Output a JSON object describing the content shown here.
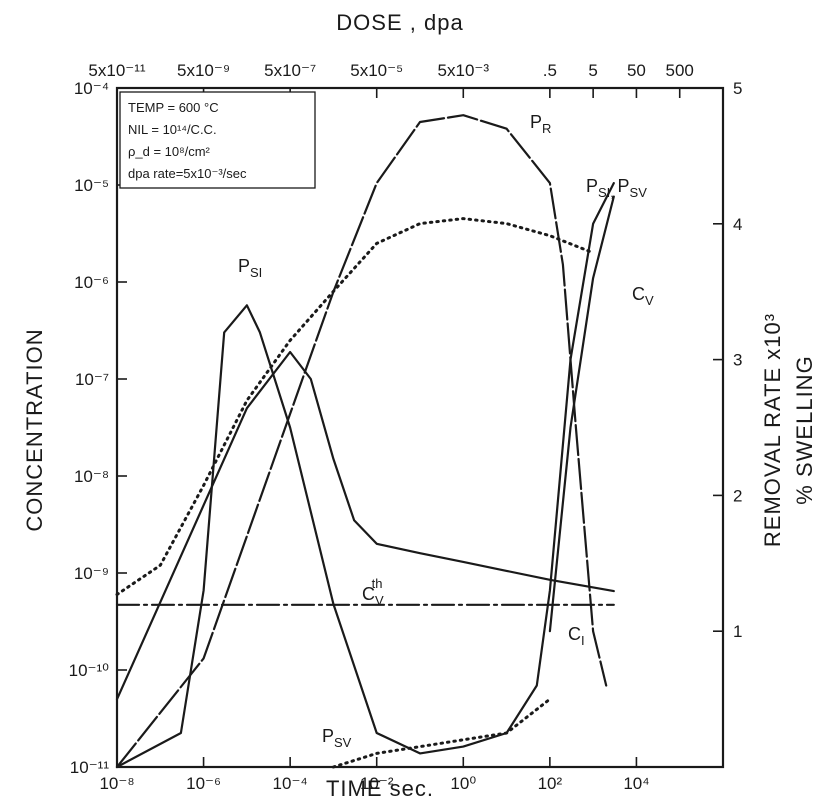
{
  "chart_data": {
    "type": "line",
    "x_axis": {
      "title": "TIME sec.",
      "scale": "log",
      "range": [
        1e-08,
        1000000.0
      ],
      "ticks": [
        1e-08,
        1e-06,
        0.0001,
        0.01,
        1.0,
        100.0,
        10000.0
      ],
      "tick_labels": [
        "10⁻⁸",
        "10⁻⁶",
        "10⁻⁴",
        "10⁻²",
        "10⁰",
        "10²",
        "10⁴"
      ]
    },
    "top_axis": {
      "title": "DOSE , dpa",
      "ticks": [
        1e-08,
        1e-06,
        0.0001,
        0.01,
        1.0,
        100.0,
        1000.0,
        10000.0,
        100000.0
      ],
      "tick_labels": [
        "5x10⁻¹¹",
        "5x10⁻⁹",
        "5x10⁻⁷",
        "5x10⁻⁵",
        "5x10⁻³",
        ".5",
        "5",
        "50",
        "500"
      ]
    },
    "y_axis": {
      "title": "CONCENTRATION",
      "scale": "log",
      "range": [
        1e-11,
        0.0001
      ],
      "ticks": [
        1e-11,
        1e-10,
        1e-09,
        1e-08,
        1e-07,
        1e-06,
        1e-05,
        0.0001
      ],
      "tick_labels": [
        "10⁻¹¹",
        "10⁻¹⁰",
        "10⁻⁹",
        "10⁻⁸",
        "10⁻⁷",
        "10⁻⁶",
        "10⁻⁵",
        "10⁻⁴"
      ]
    },
    "y2_axis": {
      "title": "REMOVAL RATE x10³",
      "title2": "% SWELLING",
      "range": [
        0,
        5
      ],
      "ticks": [
        1,
        2,
        3,
        4,
        5
      ],
      "tick_labels": [
        "1",
        "2",
        "3",
        "4",
        "5"
      ]
    },
    "legend_box": {
      "lines": [
        "TEMP = 600 °C",
        "NIL = 10¹⁴/C.C.",
        "ρ_d = 10⁸/cm²",
        "dpa rate=5x10⁻³/sec"
      ]
    },
    "series": [
      {
        "name": "C_V",
        "style": "dotted",
        "axis": "y",
        "label": "C",
        "label_sub": "V",
        "points": [
          [
            1e-08,
            6e-10
          ],
          [
            1e-07,
            1.2e-09
          ],
          [
            1e-06,
            8e-09
          ],
          [
            1e-05,
            6e-08
          ],
          [
            0.0001,
            2.5e-07
          ],
          [
            0.001,
            8e-07
          ],
          [
            0.01,
            2.5e-06
          ],
          [
            0.1,
            4e-06
          ],
          [
            1,
            4.5e-06
          ],
          [
            10,
            4e-06
          ],
          [
            100,
            3e-06
          ],
          [
            1000,
            2e-06
          ]
        ]
      },
      {
        "name": "C_I",
        "style": "solid",
        "axis": "y",
        "label": "C",
        "label_sub": "I",
        "points": [
          [
            1e-08,
            5e-11
          ],
          [
            1e-07,
            5e-10
          ],
          [
            1e-06,
            5e-09
          ],
          [
            1e-05,
            5e-08
          ],
          [
            0.0001,
            1.9e-07
          ],
          [
            0.0003,
            1e-07
          ],
          [
            0.001,
            1.5e-08
          ],
          [
            0.003,
            3.5e-09
          ],
          [
            0.01,
            2e-09
          ],
          [
            0.1,
            1.6e-09
          ],
          [
            1,
            1.3e-09
          ],
          [
            10,
            1.05e-09
          ],
          [
            100,
            8.5e-10
          ],
          [
            3000,
            6.5e-10
          ]
        ]
      },
      {
        "name": "C_V_th",
        "style": "dashdot",
        "axis": "y",
        "label": "C",
        "label_sub": "V",
        "label_sup": "th",
        "points": [
          [
            1e-08,
            4.7e-10
          ],
          [
            3000.0,
            4.7e-10
          ]
        ]
      },
      {
        "name": "P_R",
        "style": "long-dash",
        "axis": "y2",
        "label": "P",
        "label_sub": "R",
        "points": [
          [
            1e-08,
            0
          ],
          [
            1e-06,
            0.8
          ],
          [
            1e-05,
            1.7
          ],
          [
            0.0001,
            2.6
          ],
          [
            0.001,
            3.5
          ],
          [
            0.01,
            4.3
          ],
          [
            0.1,
            4.75
          ],
          [
            1,
            4.8
          ],
          [
            10,
            4.7
          ],
          [
            100,
            4.3
          ],
          [
            200,
            3.7
          ],
          [
            400,
            2.5
          ],
          [
            1000,
            1.0
          ],
          [
            2000,
            0.6
          ]
        ]
      },
      {
        "name": "P_SI",
        "style": "solid",
        "axis": "y2",
        "label": "P",
        "label_sub": "SI",
        "points": [
          [
            1e-08,
            0
          ],
          [
            3e-07,
            0.25
          ],
          [
            1e-06,
            1.3
          ],
          [
            3e-06,
            3.2
          ],
          [
            1e-05,
            3.4
          ],
          [
            2e-05,
            3.2
          ],
          [
            0.0001,
            2.5
          ],
          [
            0.001,
            1.2
          ],
          [
            0.01,
            0.25
          ],
          [
            0.1,
            0.1
          ],
          [
            1,
            0.15
          ],
          [
            10,
            0.25
          ],
          [
            50,
            0.6
          ],
          [
            100,
            1.3
          ],
          [
            300,
            3.0
          ],
          [
            1000,
            4.0
          ],
          [
            3000,
            4.3
          ]
        ]
      },
      {
        "name": "P_SV",
        "style": "dotted",
        "axis": "y2",
        "label": "P",
        "label_sub": "SV",
        "points": [
          [
            0.001,
            0
          ],
          [
            0.01,
            0.1
          ],
          [
            0.1,
            0.15
          ],
          [
            1,
            0.2
          ],
          [
            10,
            0.25
          ],
          [
            100,
            0.5
          ]
        ]
      },
      {
        "name": "Swelling",
        "style": "solid",
        "axis": "y2",
        "label": "P",
        "label_sub": "SI, ",
        "label2": "P",
        "label2_sub": "SV",
        "points": [
          [
            100,
            1.0
          ],
          [
            300,
            2.5
          ],
          [
            1000,
            3.6
          ],
          [
            3000,
            4.2
          ]
        ]
      }
    ],
    "grid": false
  }
}
